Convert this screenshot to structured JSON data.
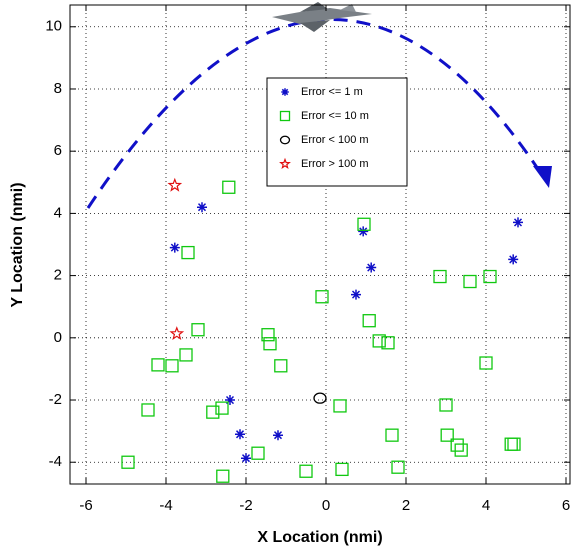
{
  "chart_data": {
    "type": "scatter",
    "x_label": "X Location (nmi)",
    "y_label": "Y Location (nmi)",
    "xlim": [
      -6.4,
      6.1
    ],
    "ylim": [
      -4.7,
      10.7
    ],
    "xticks": [
      -6,
      -4,
      -2,
      0,
      2,
      4,
      6
    ],
    "yticks": [
      -4,
      -2,
      0,
      2,
      4,
      6,
      8,
      10
    ],
    "grid": true,
    "legend": "upper center",
    "series": [
      {
        "name": "Error <= 1 m",
        "color": "#1010c8",
        "marker": "asterisk",
        "x": [
          -3.1,
          -3.78,
          0.93,
          4.8,
          4.68,
          1.13,
          0.75,
          -2.4,
          -2.15,
          -1.2,
          -2.0
        ],
        "values": [
          4.2,
          2.9,
          3.42,
          3.71,
          2.52,
          2.26,
          1.39,
          -2.0,
          -3.1,
          -3.13,
          -3.87
        ]
      },
      {
        "name": "Error <= 10 m",
        "color": "#10c810",
        "marker": "square",
        "x": [
          -2.43,
          0.95,
          -3.45,
          2.85,
          3.6,
          4.1,
          -0.1,
          1.08,
          -3.2,
          -1.45,
          -1.4,
          1.33,
          1.55,
          -3.5,
          -4.2,
          -3.85,
          -1.13,
          4.0,
          3.0,
          0.35,
          -2.6,
          -2.83,
          -4.45,
          1.65,
          3.03,
          3.28,
          3.38,
          4.63,
          4.7,
          -1.7,
          -4.95,
          -0.5,
          0.4,
          1.8,
          -2.58
        ],
        "values": [
          4.84,
          3.65,
          2.74,
          1.97,
          1.81,
          1.97,
          1.32,
          0.55,
          0.26,
          0.1,
          -0.19,
          -0.1,
          -0.16,
          -0.55,
          -0.87,
          -0.9,
          -0.9,
          -0.81,
          -2.16,
          -2.19,
          -2.26,
          -2.39,
          -2.32,
          -3.13,
          -3.13,
          -3.45,
          -3.61,
          -3.42,
          -3.42,
          -3.71,
          -4.0,
          -4.29,
          -4.23,
          -4.16,
          -4.45
        ]
      },
      {
        "name": "Error < 100 m",
        "color": "#000000",
        "marker": "circle",
        "x": [
          -0.15
        ],
        "values": [
          -1.94
        ]
      },
      {
        "name": "Error > 100 m",
        "color": "#e01010",
        "marker": "star",
        "x": [
          -3.78,
          -3.73
        ],
        "values": [
          4.9,
          0.13
        ]
      }
    ]
  }
}
